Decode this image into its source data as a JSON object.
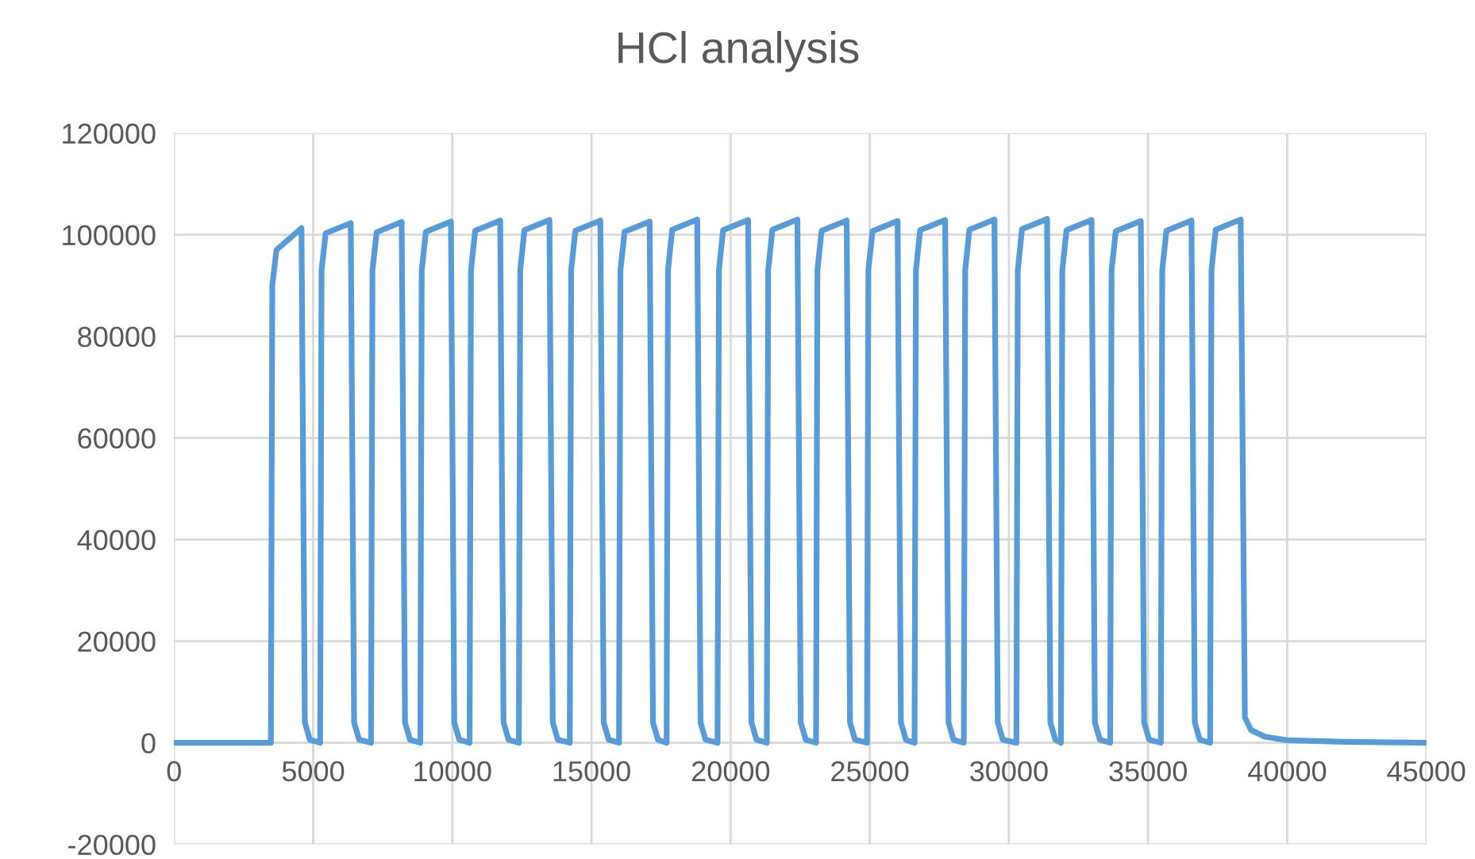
{
  "chart_data": {
    "type": "line",
    "title": "HCl analysis",
    "series": [
      {
        "color": "#5b9bd5",
        "x": [
          0,
          3400,
          3480,
          3530,
          3680,
          4580,
          4700,
          4880,
          5250,
          5300,
          5450,
          6350,
          6470,
          6650,
          7080,
          7130,
          7280,
          8180,
          8300,
          8480,
          8850,
          8900,
          9050,
          9950,
          10070,
          10250,
          10620,
          10670,
          10820,
          11720,
          11840,
          12020,
          12390,
          12440,
          12590,
          13490,
          13610,
          13790,
          14220,
          14270,
          14420,
          15320,
          15440,
          15620,
          15990,
          16040,
          16190,
          17090,
          17210,
          17390,
          17700,
          17750,
          17900,
          18800,
          18920,
          19100,
          19530,
          19580,
          19730,
          20630,
          20750,
          20930,
          21300,
          21350,
          21500,
          22400,
          22520,
          22700,
          23070,
          23120,
          23270,
          24170,
          24290,
          24470,
          24900,
          24950,
          25100,
          26000,
          26120,
          26300,
          26610,
          26660,
          26810,
          27710,
          27830,
          28010,
          28380,
          28430,
          28580,
          29480,
          29600,
          29780,
          30270,
          30320,
          30470,
          31370,
          31490,
          31670,
          31870,
          31920,
          32070,
          32970,
          33090,
          33270,
          33640,
          33690,
          33840,
          34740,
          34860,
          35040,
          35460,
          35510,
          35660,
          36560,
          36680,
          36860,
          37230,
          37280,
          37430,
          38330,
          38480,
          38700,
          39200,
          40000,
          42000,
          45000
        ],
        "values": [
          0,
          0,
          0,
          90000,
          97000,
          101300,
          4000,
          600,
          0,
          93000,
          100300,
          102300,
          4000,
          600,
          0,
          93000,
          100500,
          102500,
          4000,
          600,
          0,
          93000,
          100600,
          102600,
          4000,
          600,
          0,
          93000,
          100800,
          102800,
          4000,
          600,
          0,
          93000,
          100900,
          102900,
          4000,
          600,
          0,
          93000,
          100800,
          102800,
          4000,
          600,
          0,
          93000,
          100600,
          102600,
          4000,
          600,
          0,
          93000,
          101000,
          103000,
          4000,
          600,
          0,
          93000,
          100900,
          102900,
          4000,
          600,
          0,
          93000,
          101000,
          103000,
          4000,
          600,
          0,
          93000,
          100800,
          102800,
          4000,
          600,
          0,
          93000,
          100700,
          102700,
          4000,
          600,
          0,
          93000,
          100900,
          102900,
          4000,
          600,
          0,
          93000,
          101000,
          103000,
          4000,
          600,
          0,
          93000,
          101100,
          103100,
          4000,
          600,
          0,
          93000,
          100900,
          102900,
          4000,
          600,
          0,
          93000,
          100700,
          102700,
          4000,
          600,
          0,
          93000,
          100800,
          102800,
          4000,
          600,
          0,
          93000,
          101000,
          103000,
          5000,
          2500,
          1200,
          500,
          200,
          0
        ]
      }
    ],
    "xlim": [
      0,
      45000
    ],
    "xticks": [
      0,
      5000,
      10000,
      15000,
      20000,
      25000,
      30000,
      35000,
      40000,
      45000
    ],
    "ylim": [
      -20000,
      120000
    ],
    "yticks": [
      -20000,
      0,
      20000,
      40000,
      60000,
      80000,
      100000,
      120000
    ],
    "grid": true,
    "line_style": "solid",
    "marker": "none"
  }
}
